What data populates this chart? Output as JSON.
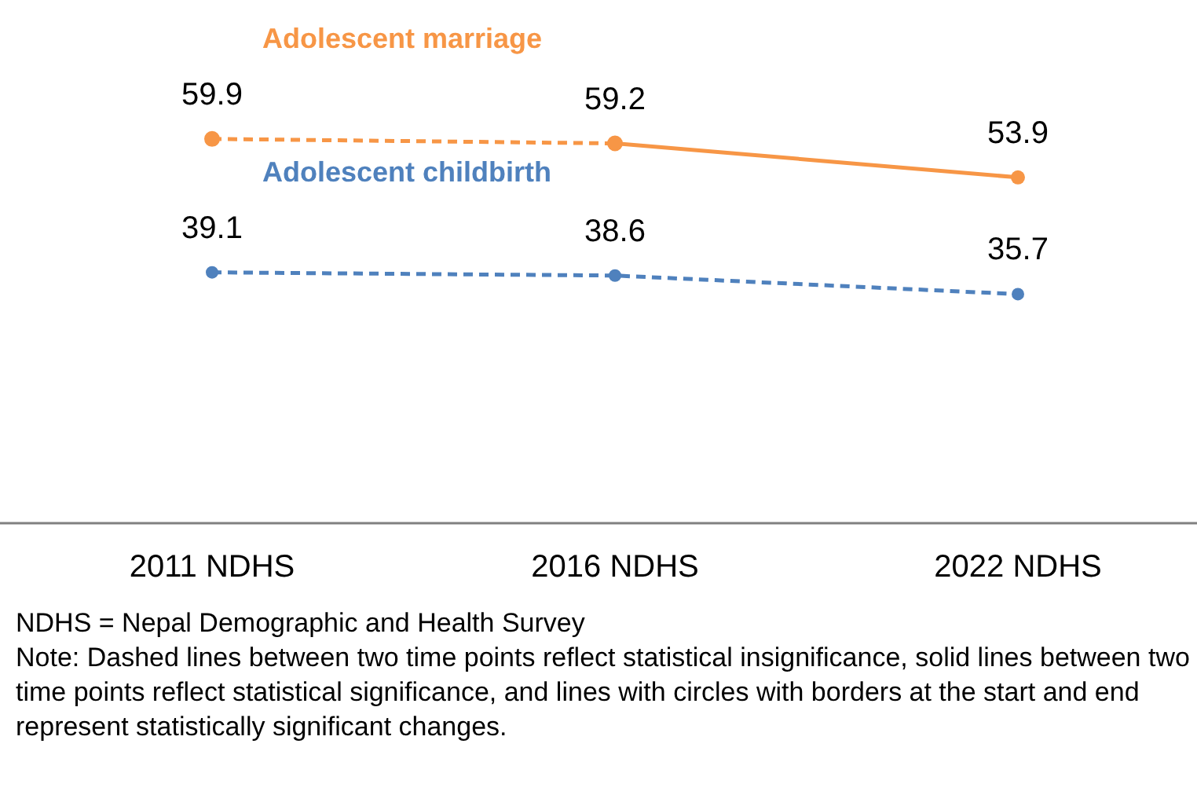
{
  "chart_data": {
    "type": "line",
    "categories": [
      "2011 NDHS",
      "2016 NDHS",
      "2022 NDHS"
    ],
    "series": [
      {
        "name": "Adolescent marriage",
        "color": "#f79646",
        "values": [
          59.9,
          59.2,
          null
        ],
        "value_labels": [
          "59.9",
          "59.2",
          null
        ],
        "line_style": "dashed"
      },
      {
        "color": "#f79646",
        "values": [
          null,
          59.2,
          53.9
        ],
        "value_labels": [
          null,
          null,
          "53.9"
        ],
        "line_style": "solid"
      },
      {
        "name": "Adolescent childbirth",
        "color": "#4f81bd",
        "values": [
          39.1,
          38.6,
          35.7
        ],
        "value_labels": [
          "39.1",
          "38.6",
          "35.7"
        ],
        "line_style": "dashed"
      }
    ],
    "tick_labels": "x",
    "marker": "circle",
    "legend": false,
    "grid": false,
    "annotations": [
      "NDHS = Nepal Demographic and Health Survey",
      "Note: Dashed lines between two time points reflect statistical insignificance, solid lines between two time points reflect statistical significance, and lines with circles with borders at the start and end represent statistically significant changes."
    ]
  }
}
